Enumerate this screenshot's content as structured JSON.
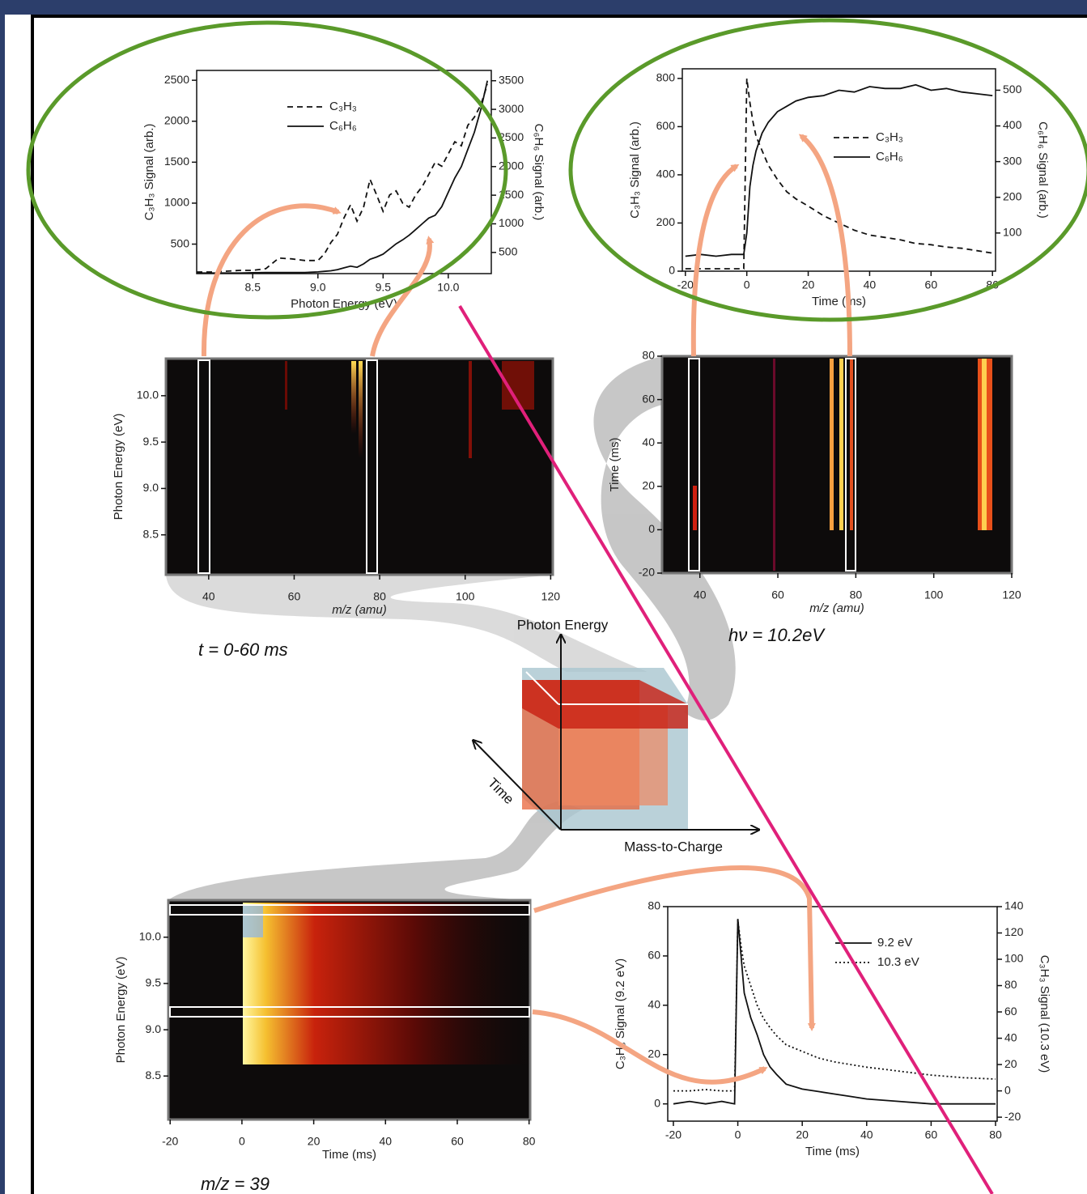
{
  "chart_data": [
    {
      "type": "line",
      "xlabel": "Photon Energy (eV)",
      "ylabel": "C₃H₃ Signal (arb.)",
      "y2label": "C₆H₆ Signal (arb.)",
      "xlim": [
        8.07,
        10.33
      ],
      "xticks": [
        8.5,
        {
          "value": 9,
          "label": "9.0"
        },
        9.5,
        {
          "value": 10,
          "label": "10.0"
        }
      ],
      "ylim": [
        140,
        2620
      ],
      "yticks": [
        500,
        1000,
        1500,
        2000,
        2500
      ],
      "y2lim": [
        130,
        3680
      ],
      "y2ticks": [
        500,
        1000,
        1500,
        2000,
        2500,
        3000,
        3500
      ],
      "legend": "upper center",
      "x": [
        8.07,
        8.2,
        8.3,
        8.4,
        8.5,
        8.6,
        8.7,
        8.8,
        8.9,
        9.0,
        9.05,
        9.1,
        9.15,
        9.2,
        9.25,
        9.3,
        9.35,
        9.4,
        9.45,
        9.5,
        9.55,
        9.6,
        9.65,
        9.7,
        9.75,
        9.8,
        9.85,
        9.9,
        9.95,
        10.0,
        10.05,
        10.1,
        10.15,
        10.2,
        10.25,
        10.3
      ],
      "series": [
        {
          "name": "C₃H₃",
          "color": "#111111",
          "style": "dashed",
          "values": [
            160,
            160,
            170,
            180,
            180,
            200,
            330,
            320,
            300,
            300,
            380,
            520,
            620,
            820,
            980,
            780,
            950,
            1290,
            1100,
            900,
            1100,
            1150,
            1000,
            950,
            1100,
            1200,
            1350,
            1500,
            1450,
            1600,
            1750,
            1700,
            1950,
            2050,
            2200,
            2450
          ]
        },
        {
          "name": "C₆H₆",
          "color": "#111111",
          "style": "solid",
          "axis": "y2",
          "values": [
            140,
            140,
            140,
            140,
            145,
            150,
            150,
            150,
            150,
            160,
            170,
            180,
            200,
            230,
            260,
            240,
            300,
            380,
            420,
            470,
            560,
            650,
            720,
            800,
            900,
            1000,
            1100,
            1150,
            1300,
            1550,
            1800,
            2000,
            2300,
            2600,
            3000,
            3500
          ]
        }
      ]
    },
    {
      "type": "line",
      "xlabel": "Time (ms)",
      "ylabel": "C₃H₃ Signal (arb.)",
      "y2label": "C₆H₆ Signal (arb.)",
      "xlim": [
        -21,
        81
      ],
      "xticks": [
        -20,
        0,
        20,
        40,
        60,
        80
      ],
      "ylim": [
        0,
        840
      ],
      "yticks": [
        0,
        200,
        400,
        600,
        800
      ],
      "y2lim": [
        -7,
        560
      ],
      "y2ticks": [
        100,
        200,
        300,
        400,
        500
      ],
      "legend": "center right",
      "x": [
        -20,
        -15,
        -10,
        -5,
        -1,
        0,
        1,
        2,
        3,
        5,
        7,
        10,
        13,
        16,
        20,
        25,
        30,
        35,
        40,
        45,
        50,
        55,
        60,
        65,
        70,
        75,
        80
      ],
      "series": [
        {
          "name": "C₃H₃",
          "color": "#111111",
          "style": "dashed",
          "values": [
            10,
            10,
            10,
            10,
            10,
            800,
            700,
            620,
            560,
            500,
            440,
            380,
            330,
            300,
            270,
            230,
            200,
            170,
            150,
            140,
            130,
            115,
            110,
            100,
            95,
            85,
            75
          ]
        },
        {
          "name": "C₆H₆",
          "color": "#111111",
          "style": "solid",
          "axis": "y2",
          "values": [
            35,
            40,
            35,
            40,
            40,
            100,
            230,
            290,
            330,
            380,
            410,
            440,
            455,
            470,
            480,
            485,
            500,
            495,
            510,
            505,
            505,
            515,
            500,
            505,
            495,
            490,
            485
          ]
        }
      ]
    },
    {
      "type": "heatmap",
      "xlabel": "m/z (amu)",
      "ylabel": "Photon Energy (eV)",
      "xlim": [
        30,
        120.5
      ],
      "xticks": [
        40,
        60,
        80,
        100,
        120
      ],
      "ylim": [
        8.07,
        10.4
      ],
      "yticks": [
        8.5,
        {
          "value": 9,
          "label": "9.0"
        },
        9.5,
        {
          "value": 10,
          "label": "10.0"
        }
      ]
    },
    {
      "type": "heatmap",
      "xlabel": "m/z (amu)",
      "ylabel": "Time (ms)",
      "xlim": [
        30.3,
        120
      ],
      "xticks": [
        40,
        60,
        80,
        100,
        120
      ],
      "ylim": [
        -20,
        80
      ],
      "yticks": [
        -20,
        0,
        20,
        40,
        60,
        80
      ]
    },
    {
      "type": "heatmap",
      "xlabel": "Time (ms)",
      "ylabel": "Photon Energy (eV)",
      "xlim": [
        -20.5,
        80.3
      ],
      "xticks": [
        -20,
        0,
        20,
        40,
        60,
        80
      ],
      "ylim": [
        8.03,
        10.4
      ],
      "yticks": [
        8.5,
        {
          "value": 9,
          "label": "9.0"
        },
        9.5,
        {
          "value": 10,
          "label": "10.0"
        }
      ]
    },
    {
      "type": "line",
      "xlabel": "Time (ms)",
      "ylabel": "C₃H₃ Signal (9.2 eV)",
      "y2label": "C₃H₃ Signal (10.3 eV)",
      "xlim": [
        -21.75,
        80.5
      ],
      "xticks": [
        -20,
        0,
        20,
        40,
        60,
        80
      ],
      "ylim": [
        -7,
        80
      ],
      "yticks": [
        0,
        20,
        40,
        60,
        80
      ],
      "y2lim": [
        -23,
        140
      ],
      "y2ticks": [
        -20,
        0,
        20,
        40,
        60,
        80,
        100,
        120,
        140
      ],
      "legend": "upper right",
      "x": [
        -20,
        -15,
        -10,
        -5,
        -1,
        0,
        1,
        2,
        4,
        6,
        8,
        10,
        12,
        15,
        20,
        25,
        30,
        35,
        40,
        50,
        60,
        70,
        80
      ],
      "series": [
        {
          "name": "9.2 eV",
          "color": "#111111",
          "style": "solid",
          "values": [
            0,
            1,
            0,
            1,
            0,
            75,
            60,
            45,
            35,
            28,
            20,
            15,
            12,
            8,
            6,
            5,
            4,
            3,
            2,
            1,
            0,
            0,
            0
          ]
        },
        {
          "name": "10.3 eV",
          "color": "#111111",
          "style": "dotted",
          "axis": "y2",
          "values": [
            0,
            0,
            1,
            0,
            0,
            130,
            110,
            95,
            80,
            65,
            55,
            48,
            42,
            35,
            30,
            25,
            22,
            20,
            18,
            15,
            12,
            10,
            9
          ]
        }
      ]
    }
  ],
  "cube": {
    "axes": [
      "Photon Energy",
      "Time",
      "Mass-to-Charge"
    ]
  },
  "captions": [
    "t = 0-60 ms",
    "hν = 10.2eV",
    "m/z = 39"
  ]
}
